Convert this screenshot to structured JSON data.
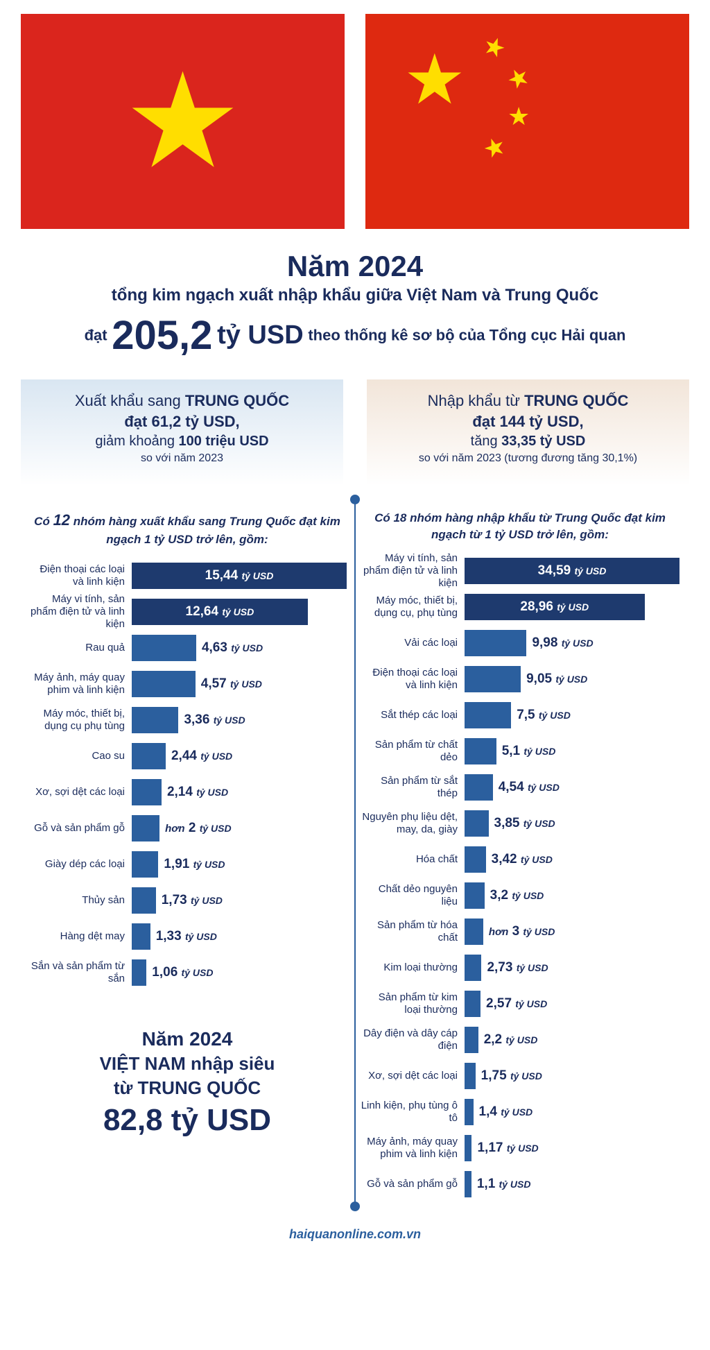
{
  "colors": {
    "text": "#1a2b5c",
    "bar_dark": "#1e3a6e",
    "bar_mid": "#2b5f9e",
    "flag_vn_bg": "#da251d",
    "flag_cn_bg": "#de2910",
    "star": "#ffde00",
    "export_bg": "#d9e6f2",
    "import_bg": "#f2e5d9"
  },
  "headline": {
    "year": "Năm 2024",
    "sub1": "tổng kim ngạch xuất nhập khẩu giữa Việt Nam và Trung Quốc",
    "prefix": "đạt",
    "big_num": "205,2",
    "unit": "tỷ USD",
    "suffix": "theo thống kê sơ bộ của Tổng cục Hải quan"
  },
  "export_summary": {
    "l1_a": "Xuất khẩu sang ",
    "l1_b": "TRUNG QUỐC",
    "l2": "đạt 61,2 tỷ USD,",
    "l3_a": "giảm khoảng ",
    "l3_b": "100 triệu USD",
    "l4": "so với năm 2023"
  },
  "import_summary": {
    "l1_a": "Nhập khẩu từ ",
    "l1_b": "TRUNG QUỐC",
    "l2": "đạt 144 tỷ USD,",
    "l3_a": "tăng ",
    "l3_b": "33,35 tỷ USD",
    "l4": "so với năm 2023 (tương đương tăng 30,1%)"
  },
  "export_chart": {
    "title_a": "Có ",
    "title_num": "12",
    "title_b": " nhóm hàng xuất khẩu sang Trung Quốc đạt kim ngạch 1 tỷ USD trở lên, gồm:",
    "max": 15.44,
    "unit": "tỷ USD",
    "bars": [
      {
        "label": "Điện thoại các loại và linh kiện",
        "value": 15.44,
        "display": "15,44",
        "color": "#1e3a6e",
        "inside": true
      },
      {
        "label": "Máy vi tính, sản phẩm điện tử và linh kiện",
        "value": 12.64,
        "display": "12,64",
        "color": "#1e3a6e",
        "inside": true
      },
      {
        "label": "Rau quả",
        "value": 4.63,
        "display": "4,63",
        "color": "#2b5f9e",
        "inside": false
      },
      {
        "label": "Máy ảnh, máy quay phim và linh kiện",
        "value": 4.57,
        "display": "4,57",
        "color": "#2b5f9e",
        "inside": false
      },
      {
        "label": "Máy móc, thiết bị, dụng cụ phụ tùng",
        "value": 3.36,
        "display": "3,36",
        "color": "#2b5f9e",
        "inside": false
      },
      {
        "label": "Cao su",
        "value": 2.44,
        "display": "2,44",
        "color": "#2b5f9e",
        "inside": false
      },
      {
        "label": "Xơ, sợi dệt các loại",
        "value": 2.14,
        "display": "2,14",
        "color": "#2b5f9e",
        "inside": false
      },
      {
        "label": "Gỗ và sản phẩm gỗ",
        "value": 2.0,
        "display": "hơn 2",
        "color": "#2b5f9e",
        "inside": false,
        "prefix_italic": true
      },
      {
        "label": "Giày dép các loại",
        "value": 1.91,
        "display": "1,91",
        "color": "#2b5f9e",
        "inside": false
      },
      {
        "label": "Thủy sản",
        "value": 1.73,
        "display": "1,73",
        "color": "#2b5f9e",
        "inside": false
      },
      {
        "label": "Hàng dệt may",
        "value": 1.33,
        "display": "1,33",
        "color": "#2b5f9e",
        "inside": false
      },
      {
        "label": "Sắn và sản phẩm từ sắn",
        "value": 1.06,
        "display": "1,06",
        "color": "#2b5f9e",
        "inside": false
      }
    ]
  },
  "import_chart": {
    "title_a": "Có 18 nhóm hàng nhập khẩu từ Trung Quốc đạt kim ngạch từ 1 tỷ USD trở lên, gồm:",
    "max": 34.59,
    "unit": "tỷ USD",
    "bars": [
      {
        "label": "Máy vi tính, sản phẩm điện tử và linh kiện",
        "value": 34.59,
        "display": "34,59",
        "color": "#1e3a6e",
        "inside": true
      },
      {
        "label": "Máy móc, thiết bị, dụng cụ, phụ tùng",
        "value": 28.96,
        "display": "28,96",
        "color": "#1e3a6e",
        "inside": true
      },
      {
        "label": "Vải các loại",
        "value": 9.98,
        "display": "9,98",
        "color": "#2b5f9e",
        "inside": false
      },
      {
        "label": "Điện thoại các loại và linh kiện",
        "value": 9.05,
        "display": "9,05",
        "color": "#2b5f9e",
        "inside": false
      },
      {
        "label": "Sắt thép các loại",
        "value": 7.5,
        "display": "7,5",
        "color": "#2b5f9e",
        "inside": false
      },
      {
        "label": "Sản phẩm từ chất dẻo",
        "value": 5.1,
        "display": "5,1",
        "color": "#2b5f9e",
        "inside": false
      },
      {
        "label": "Sản phẩm từ sắt thép",
        "value": 4.54,
        "display": "4,54",
        "color": "#2b5f9e",
        "inside": false
      },
      {
        "label": "Nguyên phụ liệu dệt, may, da, giày",
        "value": 3.85,
        "display": "3,85",
        "color": "#2b5f9e",
        "inside": false
      },
      {
        "label": "Hóa chất",
        "value": 3.42,
        "display": "3,42",
        "color": "#2b5f9e",
        "inside": false
      },
      {
        "label": "Chất dẻo nguyên liệu",
        "value": 3.2,
        "display": "3,2",
        "color": "#2b5f9e",
        "inside": false
      },
      {
        "label": "Sản phẩm từ hóa chất",
        "value": 3.0,
        "display": "hơn 3",
        "color": "#2b5f9e",
        "inside": false,
        "prefix_italic": true
      },
      {
        "label": "Kim loại thường",
        "value": 2.73,
        "display": "2,73",
        "color": "#2b5f9e",
        "inside": false
      },
      {
        "label": "Sản phẩm từ kim loại thường",
        "value": 2.57,
        "display": "2,57",
        "color": "#2b5f9e",
        "inside": false
      },
      {
        "label": "Dây điện và dây cáp điện",
        "value": 2.2,
        "display": "2,2",
        "color": "#2b5f9e",
        "inside": false
      },
      {
        "label": "Xơ, sợi dệt các loại",
        "value": 1.75,
        "display": "1,75",
        "color": "#2b5f9e",
        "inside": false
      },
      {
        "label": "Linh kiện, phụ tùng ô tô",
        "value": 1.4,
        "display": "1,4",
        "color": "#2b5f9e",
        "inside": false
      },
      {
        "label": "Máy ảnh, máy quay phim và linh kiện",
        "value": 1.17,
        "display": "1,17",
        "color": "#2b5f9e",
        "inside": false
      },
      {
        "label": "Gỗ và sản phẩm gỗ",
        "value": 1.1,
        "display": "1,1",
        "color": "#2b5f9e",
        "inside": false
      }
    ]
  },
  "deficit": {
    "d1": "Năm 2024",
    "d2": "VIỆT NAM nhập siêu",
    "d3": "từ TRUNG QUỐC",
    "d4": "82,8 tỷ USD"
  },
  "footer": "haiquanonline.com.vn"
}
